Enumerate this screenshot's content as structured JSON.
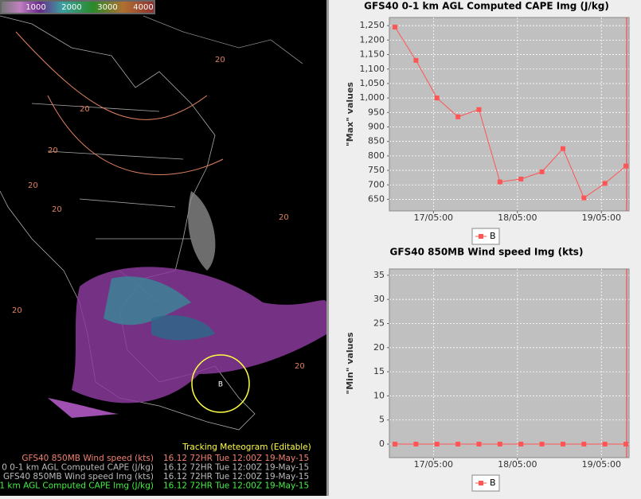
{
  "colorbar": {
    "labels": [
      "1000",
      "2000",
      "3000",
      "4000"
    ]
  },
  "map": {
    "marker": "B",
    "contour_labels": [
      "20",
      "20",
      "20",
      "20",
      "20",
      "20",
      "20",
      "20"
    ]
  },
  "status": {
    "title": "Tracking Meteogram (Editable)",
    "layers": [
      {
        "name": "GFS40 850MB Wind speed  (kts)",
        "time": "16.12  72HR Tue 12:00Z 19-May-15",
        "color": "#f08070"
      },
      {
        "name": "0 0-1 km AGL Computed CAPE  (J/kg)",
        "time": "16.12  72HR Tue 12:00Z 19-May-15",
        "color": "#bbbbbb"
      },
      {
        "name": "GFS40 850MB Wind speed Img (kts)",
        "time": "16.12  72HR Tue 12:00Z 19-May-15",
        "color": "#bbbbbb"
      },
      {
        "name": "1 km AGL Computed CAPE Img (J/kg)",
        "time": "16.12  72HR Tue 12:00Z 19-May-15",
        "color": "#44ee44"
      }
    ]
  },
  "charts": [
    {
      "type": "line",
      "title": "GFS40 0-1 km AGL Computed CAPE Img (J/kg)",
      "ylabel": "\"Max\" values",
      "x": [
        18,
        24,
        30,
        36,
        42,
        48,
        54,
        60,
        66,
        72,
        78,
        84
      ],
      "series": [
        {
          "name": "B",
          "color": "#ff5555",
          "values": [
            1245,
            1130,
            1000,
            935,
            960,
            710,
            720,
            745,
            825,
            655,
            705,
            765
          ]
        }
      ],
      "xlim": [
        16.4,
        84.9
      ],
      "xticks": [
        {
          "value": 29,
          "label": "17/05:00"
        },
        {
          "value": 53,
          "label": "18/05:00"
        },
        {
          "value": 77,
          "label": "19/05:00"
        }
      ],
      "ylim": [
        610,
        1278
      ],
      "yticks": [
        650,
        700,
        750,
        800,
        850,
        900,
        950,
        {
          "value": 1000,
          "label": "1,000"
        },
        {
          "value": 1050,
          "label": "1,050"
        },
        {
          "value": 1100,
          "label": "1,100"
        },
        {
          "value": 1150,
          "label": "1,150"
        },
        {
          "value": 1200,
          "label": "1,200"
        },
        {
          "value": 1250,
          "label": "1,250"
        }
      ],
      "grid": true
    },
    {
      "type": "line",
      "title": "GFS40 850MB Wind speed Img (kts)",
      "ylabel": "\"Min\" values",
      "x": [
        18,
        24,
        30,
        36,
        42,
        48,
        54,
        60,
        66,
        72,
        78,
        84
      ],
      "series": [
        {
          "name": "B",
          "color": "#ff5555",
          "values": [
            0,
            0,
            0,
            0,
            0,
            0,
            0,
            0,
            0,
            0,
            0,
            0
          ]
        }
      ],
      "xlim": [
        16.4,
        84.9
      ],
      "xticks": [
        {
          "value": 29,
          "label": "17/05:00"
        },
        {
          "value": 53,
          "label": "18/05:00"
        },
        {
          "value": 77,
          "label": "19/05:00"
        }
      ],
      "ylim": [
        -2.8,
        36.3
      ],
      "yticks": [
        0,
        5,
        10,
        15,
        20,
        25,
        30,
        35
      ],
      "grid": true
    }
  ]
}
